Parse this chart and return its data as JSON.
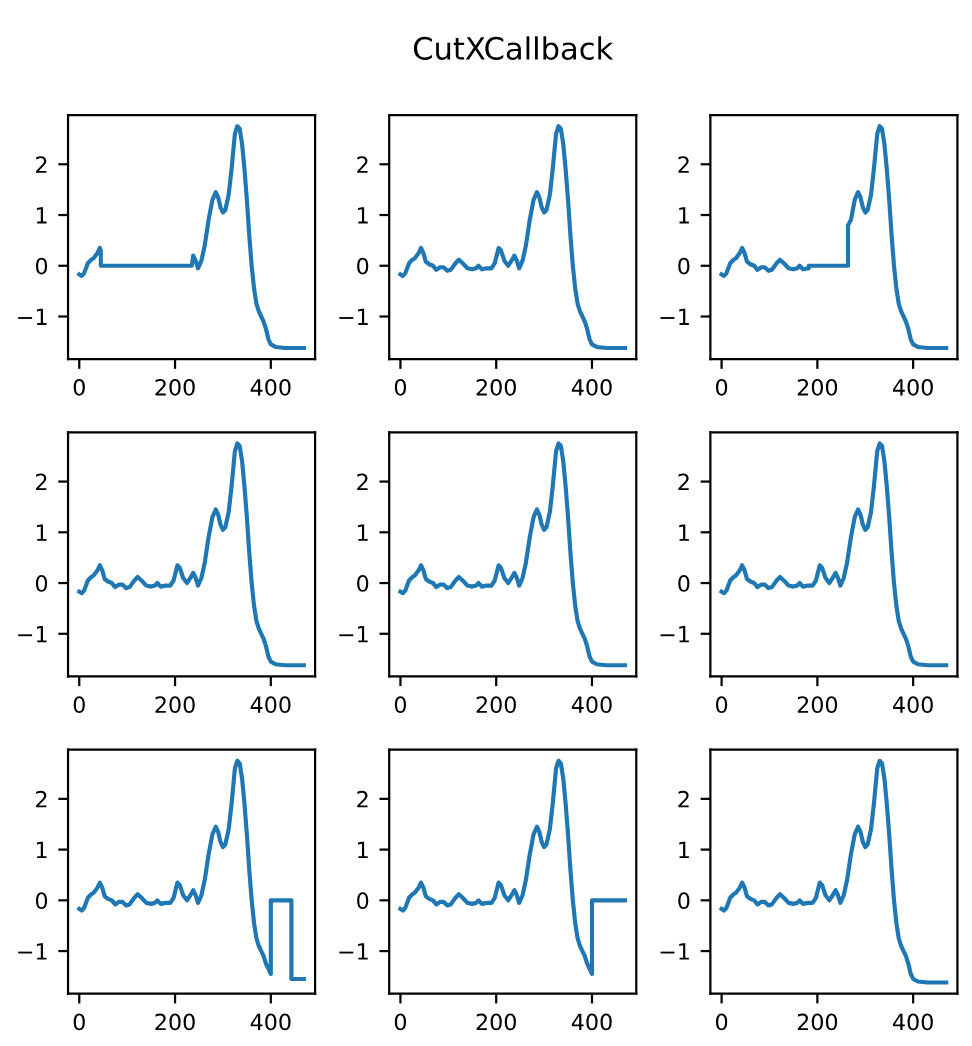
{
  "chart_data": [
    {
      "type": "line",
      "xlim": [
        -23.45,
        492.45
      ],
      "ylim": [
        -1.84,
        2.97
      ],
      "xticks": [
        0,
        200,
        400
      ],
      "yticks": [
        -1,
        0,
        1,
        2
      ],
      "grid": false,
      "series": [
        {
          "color": "#1f77b4",
          "x": [
            0,
            5,
            10,
            18,
            25,
            30,
            38,
            43,
            45,
            45,
            235,
            238,
            243,
            248,
            255,
            262,
            270,
            278,
            285,
            290,
            295,
            300,
            305,
            312,
            318,
            325,
            330,
            335,
            340,
            345,
            350,
            355,
            360,
            365,
            370,
            375,
            380,
            385,
            390,
            395,
            400,
            410,
            430,
            469
          ],
          "values": [
            -0.17,
            -0.2,
            -0.15,
            0.05,
            0.12,
            0.15,
            0.25,
            0.35,
            0.3,
            0.0,
            0.0,
            0.2,
            0.1,
            -0.05,
            0.1,
            0.4,
            0.9,
            1.3,
            1.45,
            1.35,
            1.15,
            1.05,
            1.1,
            1.4,
            1.9,
            2.6,
            2.75,
            2.7,
            2.4,
            1.9,
            1.3,
            0.6,
            0.0,
            -0.45,
            -0.75,
            -0.9,
            -1.0,
            -1.1,
            -1.25,
            -1.45,
            -1.55,
            -1.6,
            -1.62,
            -1.62
          ]
        }
      ]
    },
    {
      "type": "line",
      "title": "CutXCallback",
      "xlim": [
        -23.45,
        492.45
      ],
      "ylim": [
        -1.84,
        2.97
      ],
      "xticks": [
        0,
        200,
        400
      ],
      "yticks": [
        -1,
        0,
        1,
        2
      ],
      "grid": false,
      "series": [
        {
          "color": "#1f77b4",
          "x": [
            0,
            5,
            10,
            18,
            25,
            30,
            38,
            43,
            48,
            53,
            60,
            68,
            75,
            83,
            90,
            98,
            105,
            115,
            122,
            130,
            140,
            150,
            158,
            163,
            170,
            180,
            190,
            197,
            205,
            210,
            217,
            225,
            232,
            238,
            243,
            248,
            255,
            262,
            270,
            278,
            285,
            290,
            295,
            300,
            305,
            312,
            318,
            325,
            330,
            335,
            340,
            345,
            350,
            355,
            360,
            365,
            370,
            375,
            380,
            385,
            390,
            395,
            400,
            410,
            430,
            469
          ],
          "values": [
            -0.17,
            -0.2,
            -0.15,
            0.05,
            0.12,
            0.15,
            0.25,
            0.35,
            0.25,
            0.08,
            0.03,
            0.0,
            -0.08,
            -0.03,
            -0.03,
            -0.1,
            -0.08,
            0.05,
            0.12,
            0.05,
            -0.05,
            -0.07,
            -0.05,
            0.0,
            -0.07,
            -0.05,
            -0.05,
            0.05,
            0.35,
            0.3,
            0.1,
            0.0,
            0.1,
            0.2,
            0.1,
            -0.05,
            0.1,
            0.4,
            0.9,
            1.3,
            1.45,
            1.35,
            1.15,
            1.05,
            1.1,
            1.4,
            1.9,
            2.6,
            2.75,
            2.7,
            2.4,
            1.9,
            1.3,
            0.6,
            0.0,
            -0.45,
            -0.75,
            -0.9,
            -1.0,
            -1.1,
            -1.25,
            -1.45,
            -1.55,
            -1.6,
            -1.62,
            -1.62
          ]
        }
      ]
    },
    {
      "type": "line",
      "xlim": [
        -23.45,
        492.45
      ],
      "ylim": [
        -1.84,
        2.97
      ],
      "xticks": [
        0,
        200,
        400
      ],
      "yticks": [
        -1,
        0,
        1,
        2
      ],
      "grid": false,
      "series": [
        {
          "color": "#1f77b4",
          "x": [
            0,
            5,
            10,
            18,
            25,
            30,
            38,
            43,
            48,
            53,
            60,
            68,
            75,
            83,
            90,
            98,
            105,
            115,
            122,
            130,
            140,
            150,
            158,
            163,
            170,
            180,
            182,
            182,
            264,
            264,
            270,
            278,
            285,
            290,
            295,
            300,
            305,
            312,
            318,
            325,
            330,
            335,
            340,
            345,
            350,
            355,
            360,
            365,
            370,
            375,
            380,
            385,
            390,
            395,
            400,
            410,
            430,
            469
          ],
          "values": [
            -0.17,
            -0.2,
            -0.15,
            0.05,
            0.12,
            0.15,
            0.25,
            0.35,
            0.25,
            0.08,
            0.03,
            0.0,
            -0.08,
            -0.03,
            -0.03,
            -0.1,
            -0.08,
            0.05,
            0.12,
            0.05,
            -0.05,
            -0.07,
            -0.05,
            0.0,
            -0.07,
            -0.05,
            -0.05,
            0.0,
            0.0,
            0.8,
            0.9,
            1.3,
            1.45,
            1.35,
            1.15,
            1.05,
            1.1,
            1.4,
            1.9,
            2.6,
            2.75,
            2.7,
            2.4,
            1.9,
            1.3,
            0.6,
            0.0,
            -0.45,
            -0.75,
            -0.9,
            -1.0,
            -1.1,
            -1.25,
            -1.45,
            -1.55,
            -1.6,
            -1.62,
            -1.62
          ]
        }
      ]
    },
    {
      "type": "line",
      "xlim": [
        -23.45,
        492.45
      ],
      "ylim": [
        -1.84,
        2.97
      ],
      "xticks": [
        0,
        200,
        400
      ],
      "yticks": [
        -1,
        0,
        1,
        2
      ],
      "grid": false,
      "series": [
        {
          "color": "#1f77b4",
          "x": [
            0,
            5,
            10,
            18,
            25,
            30,
            38,
            43,
            48,
            53,
            60,
            68,
            75,
            83,
            90,
            98,
            105,
            115,
            122,
            130,
            140,
            150,
            158,
            163,
            170,
            180,
            190,
            197,
            205,
            210,
            217,
            225,
            232,
            238,
            243,
            248,
            255,
            262,
            270,
            278,
            285,
            290,
            295,
            300,
            305,
            312,
            318,
            325,
            330,
            335,
            340,
            345,
            350,
            355,
            360,
            365,
            370,
            375,
            380,
            385,
            390,
            395,
            400,
            410,
            430,
            469
          ],
          "values": [
            -0.17,
            -0.2,
            -0.15,
            0.05,
            0.12,
            0.15,
            0.25,
            0.35,
            0.25,
            0.08,
            0.03,
            0.0,
            -0.08,
            -0.03,
            -0.03,
            -0.1,
            -0.08,
            0.05,
            0.12,
            0.05,
            -0.05,
            -0.07,
            -0.05,
            0.0,
            -0.07,
            -0.05,
            -0.05,
            0.05,
            0.35,
            0.3,
            0.1,
            0.0,
            0.1,
            0.2,
            0.1,
            -0.05,
            0.1,
            0.4,
            0.9,
            1.3,
            1.45,
            1.35,
            1.15,
            1.05,
            1.1,
            1.4,
            1.9,
            2.6,
            2.75,
            2.7,
            2.4,
            1.9,
            1.3,
            0.6,
            0.0,
            -0.45,
            -0.75,
            -0.9,
            -1.0,
            -1.1,
            -1.25,
            -1.45,
            -1.55,
            -1.6,
            -1.62,
            -1.62
          ]
        }
      ]
    },
    {
      "type": "line",
      "xlim": [
        -23.45,
        492.45
      ],
      "ylim": [
        -1.84,
        2.97
      ],
      "xticks": [
        0,
        200,
        400
      ],
      "yticks": [
        -1,
        0,
        1,
        2
      ],
      "grid": false,
      "series": [
        {
          "color": "#1f77b4",
          "x": [
            0,
            5,
            10,
            18,
            25,
            30,
            38,
            43,
            48,
            53,
            60,
            68,
            75,
            83,
            90,
            98,
            105,
            115,
            122,
            130,
            140,
            150,
            158,
            163,
            170,
            180,
            190,
            197,
            205,
            210,
            217,
            225,
            232,
            238,
            243,
            248,
            255,
            262,
            270,
            278,
            285,
            290,
            295,
            300,
            305,
            312,
            318,
            325,
            330,
            335,
            340,
            345,
            350,
            355,
            360,
            365,
            370,
            375,
            380,
            385,
            390,
            395,
            400,
            410,
            430,
            469
          ],
          "values": [
            -0.17,
            -0.2,
            -0.15,
            0.05,
            0.12,
            0.15,
            0.25,
            0.35,
            0.25,
            0.08,
            0.03,
            0.0,
            -0.08,
            -0.03,
            -0.03,
            -0.1,
            -0.08,
            0.05,
            0.12,
            0.05,
            -0.05,
            -0.07,
            -0.05,
            0.0,
            -0.07,
            -0.05,
            -0.05,
            0.05,
            0.35,
            0.3,
            0.1,
            0.0,
            0.1,
            0.2,
            0.1,
            -0.05,
            0.1,
            0.4,
            0.9,
            1.3,
            1.45,
            1.35,
            1.15,
            1.05,
            1.1,
            1.4,
            1.9,
            2.6,
            2.75,
            2.7,
            2.4,
            1.9,
            1.3,
            0.6,
            0.0,
            -0.45,
            -0.75,
            -0.9,
            -1.0,
            -1.1,
            -1.25,
            -1.45,
            -1.55,
            -1.6,
            -1.62,
            -1.62
          ]
        }
      ]
    },
    {
      "type": "line",
      "xlim": [
        -23.45,
        492.45
      ],
      "ylim": [
        -1.84,
        2.97
      ],
      "xticks": [
        0,
        200,
        400
      ],
      "yticks": [
        -1,
        0,
        1,
        2
      ],
      "grid": false,
      "series": [
        {
          "color": "#1f77b4",
          "x": [
            0,
            5,
            10,
            18,
            25,
            30,
            38,
            43,
            48,
            53,
            60,
            68,
            75,
            83,
            90,
            98,
            105,
            115,
            122,
            130,
            140,
            150,
            158,
            163,
            170,
            180,
            190,
            197,
            205,
            210,
            217,
            225,
            232,
            238,
            243,
            248,
            255,
            262,
            270,
            278,
            285,
            290,
            295,
            300,
            305,
            312,
            318,
            325,
            330,
            335,
            340,
            345,
            350,
            355,
            360,
            365,
            370,
            375,
            380,
            385,
            390,
            395,
            400,
            410,
            430,
            469
          ],
          "values": [
            -0.17,
            -0.2,
            -0.15,
            0.05,
            0.12,
            0.15,
            0.25,
            0.35,
            0.25,
            0.08,
            0.03,
            0.0,
            -0.08,
            -0.03,
            -0.03,
            -0.1,
            -0.08,
            0.05,
            0.12,
            0.05,
            -0.05,
            -0.07,
            -0.05,
            0.0,
            -0.07,
            -0.05,
            -0.05,
            0.05,
            0.35,
            0.3,
            0.1,
            0.0,
            0.1,
            0.2,
            0.1,
            -0.05,
            0.1,
            0.4,
            0.9,
            1.3,
            1.45,
            1.35,
            1.15,
            1.05,
            1.1,
            1.4,
            1.9,
            2.6,
            2.75,
            2.7,
            2.4,
            1.9,
            1.3,
            0.6,
            0.0,
            -0.45,
            -0.75,
            -0.9,
            -1.0,
            -1.1,
            -1.25,
            -1.45,
            -1.55,
            -1.6,
            -1.62,
            -1.62
          ]
        }
      ]
    },
    {
      "type": "line",
      "xlim": [
        -23.45,
        492.45
      ],
      "ylim": [
        -1.84,
        2.97
      ],
      "xticks": [
        0,
        200,
        400
      ],
      "yticks": [
        -1,
        0,
        1,
        2
      ],
      "grid": false,
      "series": [
        {
          "color": "#1f77b4",
          "x": [
            0,
            5,
            10,
            18,
            25,
            30,
            38,
            43,
            48,
            53,
            60,
            68,
            75,
            83,
            90,
            98,
            105,
            115,
            122,
            130,
            140,
            150,
            158,
            163,
            170,
            180,
            190,
            197,
            205,
            210,
            217,
            225,
            232,
            238,
            243,
            248,
            255,
            262,
            270,
            278,
            285,
            290,
            295,
            300,
            305,
            312,
            318,
            325,
            330,
            335,
            340,
            345,
            350,
            355,
            360,
            365,
            370,
            375,
            380,
            385,
            390,
            395,
            400,
            400,
            443,
            443,
            469
          ],
          "values": [
            -0.17,
            -0.2,
            -0.15,
            0.05,
            0.12,
            0.15,
            0.25,
            0.35,
            0.25,
            0.08,
            0.03,
            0.0,
            -0.08,
            -0.03,
            -0.03,
            -0.1,
            -0.08,
            0.05,
            0.12,
            0.05,
            -0.05,
            -0.07,
            -0.05,
            0.0,
            -0.07,
            -0.05,
            -0.05,
            0.05,
            0.35,
            0.3,
            0.1,
            0.0,
            0.1,
            0.2,
            0.1,
            -0.05,
            0.1,
            0.4,
            0.9,
            1.3,
            1.45,
            1.35,
            1.15,
            1.05,
            1.1,
            1.4,
            1.9,
            2.6,
            2.75,
            2.7,
            2.4,
            1.9,
            1.3,
            0.6,
            0.0,
            -0.45,
            -0.75,
            -0.9,
            -1.0,
            -1.1,
            -1.25,
            -1.35,
            -1.45,
            0.0,
            0.0,
            -1.55,
            -1.55
          ]
        }
      ]
    },
    {
      "type": "line",
      "xlim": [
        -23.45,
        492.45
      ],
      "ylim": [
        -1.84,
        2.97
      ],
      "xticks": [
        0,
        200,
        400
      ],
      "yticks": [
        -1,
        0,
        1,
        2
      ],
      "grid": false,
      "series": [
        {
          "color": "#1f77b4",
          "x": [
            0,
            5,
            10,
            18,
            25,
            30,
            38,
            43,
            48,
            53,
            60,
            68,
            75,
            83,
            90,
            98,
            105,
            115,
            122,
            130,
            140,
            150,
            158,
            163,
            170,
            180,
            190,
            197,
            205,
            210,
            217,
            225,
            232,
            238,
            243,
            248,
            255,
            262,
            270,
            278,
            285,
            290,
            295,
            300,
            305,
            312,
            318,
            325,
            330,
            335,
            340,
            345,
            350,
            355,
            360,
            365,
            370,
            375,
            380,
            385,
            390,
            395,
            400,
            400,
            469
          ],
          "values": [
            -0.17,
            -0.2,
            -0.15,
            0.05,
            0.12,
            0.15,
            0.25,
            0.35,
            0.25,
            0.08,
            0.03,
            0.0,
            -0.08,
            -0.03,
            -0.03,
            -0.1,
            -0.08,
            0.05,
            0.12,
            0.05,
            -0.05,
            -0.07,
            -0.05,
            0.0,
            -0.07,
            -0.05,
            -0.05,
            0.05,
            0.35,
            0.3,
            0.1,
            0.0,
            0.1,
            0.2,
            0.1,
            -0.05,
            0.1,
            0.4,
            0.9,
            1.3,
            1.45,
            1.35,
            1.15,
            1.05,
            1.1,
            1.4,
            1.9,
            2.6,
            2.75,
            2.7,
            2.4,
            1.9,
            1.3,
            0.6,
            0.0,
            -0.45,
            -0.75,
            -0.9,
            -1.0,
            -1.1,
            -1.25,
            -1.35,
            -1.45,
            0.0,
            0.0
          ]
        }
      ]
    },
    {
      "type": "line",
      "xlim": [
        -23.45,
        492.45
      ],
      "ylim": [
        -1.84,
        2.97
      ],
      "xticks": [
        0,
        200,
        400
      ],
      "yticks": [
        -1,
        0,
        1,
        2
      ],
      "grid": false,
      "series": [
        {
          "color": "#1f77b4",
          "x": [
            0,
            5,
            10,
            18,
            25,
            30,
            38,
            43,
            48,
            53,
            60,
            68,
            75,
            83,
            90,
            98,
            105,
            115,
            122,
            130,
            140,
            150,
            158,
            163,
            170,
            180,
            190,
            197,
            205,
            210,
            217,
            225,
            232,
            238,
            243,
            248,
            255,
            262,
            270,
            278,
            285,
            290,
            295,
            300,
            305,
            312,
            318,
            325,
            330,
            335,
            340,
            345,
            350,
            355,
            360,
            365,
            370,
            375,
            380,
            385,
            390,
            395,
            400,
            410,
            430,
            469
          ],
          "values": [
            -0.17,
            -0.2,
            -0.15,
            0.05,
            0.12,
            0.15,
            0.25,
            0.35,
            0.25,
            0.08,
            0.03,
            0.0,
            -0.08,
            -0.03,
            -0.03,
            -0.1,
            -0.08,
            0.05,
            0.12,
            0.05,
            -0.05,
            -0.07,
            -0.05,
            0.0,
            -0.07,
            -0.05,
            -0.05,
            0.05,
            0.35,
            0.3,
            0.1,
            0.0,
            0.1,
            0.2,
            0.1,
            -0.05,
            0.1,
            0.4,
            0.9,
            1.3,
            1.45,
            1.35,
            1.15,
            1.05,
            1.1,
            1.4,
            1.9,
            2.6,
            2.75,
            2.7,
            2.4,
            1.9,
            1.3,
            0.6,
            0.0,
            -0.45,
            -0.75,
            -0.9,
            -1.0,
            -1.1,
            -1.25,
            -1.45,
            -1.55,
            -1.6,
            -1.62,
            -1.62
          ]
        }
      ]
    }
  ]
}
